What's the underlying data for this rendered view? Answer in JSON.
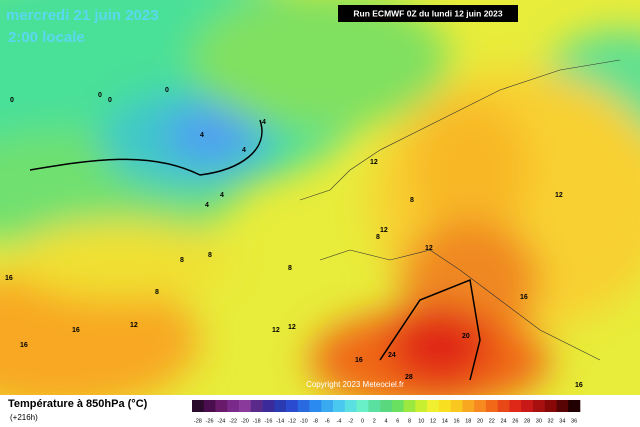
{
  "map": {
    "date": "mercredi 21 juin 2023",
    "time": "2:00 locale",
    "run": "Run ECMWF 0Z du lundi 12 juin 2023",
    "copyright": "Copyright 2023 Meteociel.fr",
    "legend": {
      "title": "Température à 850hPa (°C)",
      "lead": "(+216h)",
      "ticks": [
        -28,
        -26,
        -24,
        -22,
        -20,
        -18,
        -16,
        -14,
        -12,
        -10,
        -8,
        -6,
        -4,
        -2,
        0,
        2,
        4,
        6,
        8,
        10,
        12,
        14,
        16,
        18,
        20,
        22,
        24,
        26,
        28,
        30,
        32,
        34,
        36
      ],
      "colors": [
        "#2a0a2a",
        "#4a0e4e",
        "#6a1a6a",
        "#7a2a8a",
        "#8a3a9a",
        "#5a2a8a",
        "#3a2a9a",
        "#2a3ab0",
        "#2a4ad0",
        "#2a6ae0",
        "#2a8af0",
        "#3aaaf0",
        "#4ac8f0",
        "#5ae0e0",
        "#6af0c8",
        "#5ae0a0",
        "#5ad880",
        "#6ae060",
        "#9ae840",
        "#c8f030",
        "#f0f030",
        "#f8e020",
        "#f8c820",
        "#f8a820",
        "#f88820",
        "#f06818",
        "#e84818",
        "#e02818",
        "#c81818",
        "#a81010",
        "#880808",
        "#580404",
        "#200000"
      ]
    },
    "contour_labels": [
      0,
      0,
      0,
      0,
      4,
      4,
      4,
      4,
      4,
      8,
      8,
      8,
      8,
      8,
      8,
      12,
      12,
      12,
      12,
      12,
      12,
      12,
      16,
      16,
      16,
      16,
      16,
      16,
      20,
      24,
      28
    ]
  }
}
